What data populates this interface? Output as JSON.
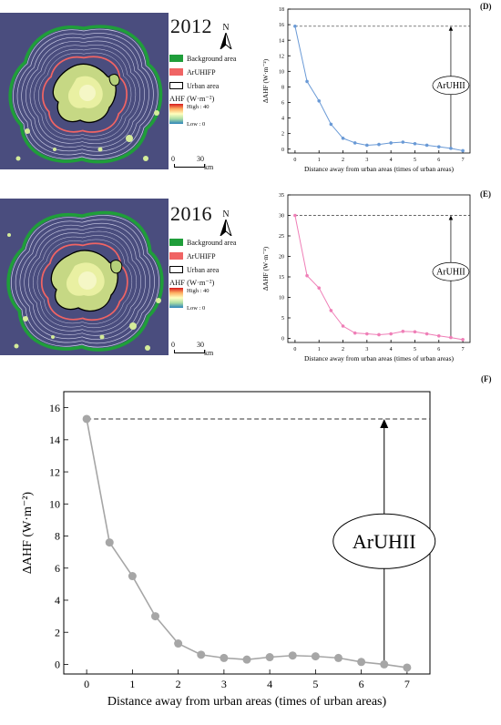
{
  "panels": [
    {
      "year": "2012",
      "north": "N",
      "legend": {
        "background": "Background area",
        "arfp": "ArUHIFP",
        "urban": "Urban area",
        "ahf_title": "AHF (W·m⁻²)",
        "high": "High : 40",
        "low": "Low : 0"
      },
      "scale": {
        "zero": "0",
        "dist": "30",
        "unit": "km"
      }
    },
    {
      "year": "2016",
      "north": "N",
      "legend": {
        "background": "Background area",
        "arfp": "ArUHIFP",
        "urban": "Urban area",
        "ahf_title": "AHF (W·m⁻²)",
        "high": "High : 40",
        "low": "Low : 0"
      },
      "scale": {
        "zero": "0",
        "dist": "30",
        "unit": "km"
      }
    }
  ],
  "colors": {
    "background_area": "#1f9e3a",
    "arfp": "#f06464",
    "urban_outline": "#000000",
    "d_series": "#6a9ad6",
    "e_series": "#ef7fb7",
    "f_series": "#a6a6a6"
  },
  "chart_data": [
    {
      "id": "D",
      "label": "(D)",
      "type": "line",
      "xlabel": "Distance away from urban areas (times of urban areas)",
      "ylabel": "ΔAHF (W·m⁻²)",
      "xlim": [
        -0.3,
        7.3
      ],
      "ylim": [
        -0.5,
        18
      ],
      "xticks": [
        0,
        1,
        2,
        3,
        4,
        5,
        6,
        7
      ],
      "yticks": [
        0,
        2,
        4,
        6,
        8,
        10,
        12,
        14,
        16,
        18
      ],
      "x": [
        0,
        0.5,
        1,
        1.5,
        2,
        2.5,
        3,
        3.5,
        4,
        4.5,
        5,
        5.5,
        6,
        6.5,
        7
      ],
      "y": [
        15.8,
        8.7,
        6.2,
        3.2,
        1.4,
        0.8,
        0.5,
        0.6,
        0.8,
        0.9,
        0.7,
        0.5,
        0.3,
        0.1,
        -0.2
      ],
      "reference_y": 15.8,
      "arrow_x": 6.5,
      "annotation": "ArUHII"
    },
    {
      "id": "E",
      "label": "(E)",
      "type": "line",
      "xlabel": "Distance away from urban areas (times of urban areas)",
      "ylabel": "ΔAHF (W·m⁻²)",
      "xlim": [
        -0.3,
        7.3
      ],
      "ylim": [
        -1,
        35
      ],
      "xticks": [
        0,
        1,
        2,
        3,
        4,
        5,
        6,
        7
      ],
      "yticks": [
        0,
        5,
        10,
        15,
        20,
        25,
        30,
        35
      ],
      "x": [
        0,
        0.5,
        1,
        1.5,
        2,
        2.5,
        3,
        3.5,
        4,
        4.5,
        5,
        5.5,
        6,
        6.5,
        7
      ],
      "y": [
        30,
        15.3,
        12.3,
        6.8,
        3,
        1.3,
        1.1,
        0.9,
        1.1,
        1.7,
        1.6,
        1.1,
        0.6,
        0.2,
        -0.3
      ],
      "reference_y": 30,
      "arrow_x": 6.5,
      "annotation": "ArUHII"
    },
    {
      "id": "F",
      "label": "(F)",
      "type": "line",
      "xlabel": "Distance away from urban areas (times of urban areas)",
      "ylabel": "ΔAHF (W·m⁻²)",
      "xlim": [
        -0.5,
        7.5
      ],
      "ylim": [
        -0.6,
        17
      ],
      "xticks": [
        0,
        1,
        2,
        3,
        4,
        5,
        6,
        7
      ],
      "yticks": [
        0,
        2,
        4,
        6,
        8,
        10,
        12,
        14,
        16
      ],
      "x": [
        0,
        0.5,
        1,
        1.5,
        2,
        2.5,
        3,
        3.5,
        4,
        4.5,
        5,
        5.5,
        6,
        6.5,
        7
      ],
      "y": [
        15.3,
        7.6,
        5.5,
        3,
        1.3,
        0.6,
        0.4,
        0.3,
        0.45,
        0.55,
        0.5,
        0.4,
        0.15,
        0,
        -0.2
      ],
      "reference_y": 15.3,
      "arrow_x": 6.5,
      "annotation": "ArUHII"
    }
  ]
}
